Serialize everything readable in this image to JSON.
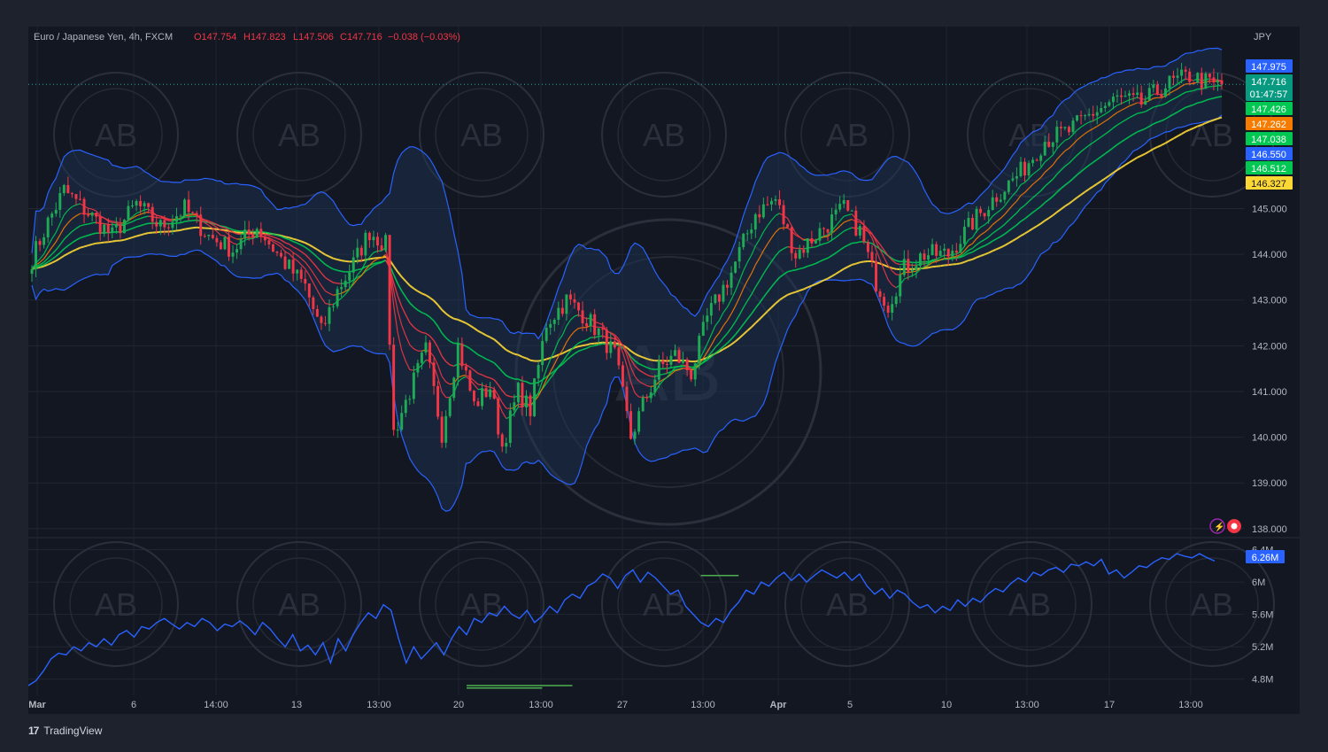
{
  "header": {
    "symbol": "Euro / Japanese Yen, 4h, FXCM",
    "open": "O147.754",
    "high": "H147.823",
    "low": "L147.506",
    "close": "C147.716",
    "change": "−0.038 (−0.03%)"
  },
  "currency": "JPY",
  "brand": "TradingView",
  "watermark_text": "AB",
  "price_labels": [
    {
      "text": "147.975",
      "color": "#2962ff",
      "value": 147.975
    },
    {
      "text": "147.716",
      "color": "#089981",
      "value": 147.716,
      "sub": "01:47:57"
    },
    {
      "text": "147.426",
      "color": "#00c853",
      "value": 147.426
    },
    {
      "text": "147.262",
      "color": "#f57c00",
      "value": 147.262
    },
    {
      "text": "147.038",
      "color": "#00c853",
      "value": 147.038
    },
    {
      "text": "146.550",
      "color": "#2962ff",
      "value": 146.55
    },
    {
      "text": "146.512",
      "color": "#00c853",
      "value": 146.512
    },
    {
      "text": "146.327",
      "color": "#fdd835",
      "value": 146.327
    }
  ],
  "volume_label": {
    "text": "6.26M",
    "color": "#2962ff",
    "value": 6.26
  },
  "colors": {
    "background": "#131722",
    "frame": "#1e222d",
    "up": "#26a69a",
    "up_candle": "#1faa56",
    "down_candle": "#f23645",
    "bollinger": "#2962ff",
    "band_fill": "#1c3557",
    "ema_fast": "#00c853",
    "ema_mid": "#f57c00",
    "ema_slow": "#fdd835",
    "text": "#b2b5be"
  },
  "chart_data": [
    {
      "type": "candlestick",
      "title": "Euro / Japanese Yen, 4h, FXCM",
      "ylabel": "JPY",
      "ylim": [
        137.9,
        148.4
      ],
      "y_ticks": [
        "145.000",
        "144.000",
        "143.000",
        "142.000",
        "141.000",
        "140.000",
        "139.000",
        "138.000"
      ],
      "y_tick_values": [
        145,
        144,
        143,
        142,
        141,
        140,
        139,
        138
      ],
      "x_ticks": [
        "Mar",
        "6",
        "14:00",
        "13",
        "13:00",
        "20",
        "13:00",
        "27",
        "13:00",
        "Apr",
        "5",
        "10",
        "13:00",
        "17",
        "13:00"
      ],
      "x_tick_bold": [
        "Mar",
        "Apr"
      ],
      "anchors": [
        [
          0,
          143.9
        ],
        [
          4,
          144.7
        ],
        [
          8,
          145.4
        ],
        [
          14,
          144.9
        ],
        [
          20,
          144.4
        ],
        [
          26,
          145.1
        ],
        [
          32,
          144.6
        ],
        [
          38,
          145.0
        ],
        [
          44,
          144.4
        ],
        [
          50,
          144.1
        ],
        [
          56,
          144.6
        ],
        [
          62,
          143.9
        ],
        [
          68,
          143.3
        ],
        [
          72,
          142.3
        ],
        [
          76,
          143.2
        ],
        [
          80,
          143.8
        ],
        [
          84,
          144.5
        ],
        [
          88,
          144.2
        ],
        [
          90,
          140.1
        ],
        [
          94,
          141.0
        ],
        [
          98,
          141.9
        ],
        [
          102,
          140.1
        ],
        [
          106,
          142.0
        ],
        [
          110,
          140.7
        ],
        [
          114,
          141.1
        ],
        [
          117,
          139.8
        ],
        [
          121,
          141.0
        ],
        [
          124,
          140.6
        ],
        [
          128,
          142.5
        ],
        [
          133,
          143.0
        ],
        [
          137,
          142.7
        ],
        [
          141,
          142.3
        ],
        [
          145,
          141.8
        ],
        [
          149,
          140.0
        ],
        [
          152,
          140.7
        ],
        [
          156,
          141.5
        ],
        [
          160,
          141.8
        ],
        [
          164,
          141.4
        ],
        [
          168,
          142.6
        ],
        [
          174,
          143.6
        ],
        [
          180,
          144.9
        ],
        [
          185,
          145.2
        ],
        [
          190,
          144.0
        ],
        [
          196,
          144.5
        ],
        [
          202,
          145.0
        ],
        [
          206,
          144.5
        ],
        [
          210,
          143.4
        ],
        [
          213,
          142.9
        ],
        [
          217,
          143.7
        ],
        [
          222,
          144.0
        ],
        [
          228,
          144.0
        ],
        [
          234,
          144.7
        ],
        [
          240,
          145.3
        ],
        [
          246,
          145.8
        ],
        [
          252,
          146.5
        ],
        [
          258,
          146.7
        ],
        [
          264,
          147.1
        ],
        [
          270,
          147.4
        ],
        [
          276,
          147.3
        ],
        [
          282,
          147.7
        ],
        [
          288,
          147.9
        ],
        [
          294,
          147.7
        ],
        [
          296,
          147.72
        ]
      ],
      "n_candles": 297,
      "series": [
        {
          "name": "BB upper",
          "kind": "band_upper"
        },
        {
          "name": "BB lower",
          "kind": "band_lower"
        },
        {
          "name": "EMA fast",
          "kind": "ema",
          "period": 8
        },
        {
          "name": "EMA mid",
          "kind": "ema",
          "period": 13
        },
        {
          "name": "EMA 21",
          "kind": "ema",
          "period": 21
        },
        {
          "name": "EMA 34",
          "kind": "ema",
          "period": 34
        },
        {
          "name": "EMA 55",
          "kind": "ema",
          "period": 55
        }
      ]
    },
    {
      "type": "line",
      "title": "",
      "ylim": [
        4.6,
        6.45
      ],
      "y_ticks": [
        "6.4M",
        "6M",
        "5.6M",
        "5.2M",
        "4.8M"
      ],
      "y_tick_values": [
        6.4,
        6.0,
        5.6,
        5.2,
        4.8
      ],
      "series": [
        {
          "name": "",
          "values": [
            4.72,
            4.78,
            4.9,
            5.05,
            5.12,
            5.1,
            5.2,
            5.15,
            5.25,
            5.2,
            5.3,
            5.22,
            5.35,
            5.4,
            5.32,
            5.45,
            5.42,
            5.5,
            5.55,
            5.48,
            5.42,
            5.5,
            5.45,
            5.55,
            5.5,
            5.4,
            5.48,
            5.45,
            5.52,
            5.45,
            5.35,
            5.5,
            5.42,
            5.3,
            5.2,
            5.35,
            5.15,
            5.22,
            5.1,
            5.25,
            5.0,
            5.3,
            5.15,
            5.35,
            5.5,
            5.62,
            5.55,
            5.72,
            5.65,
            5.3,
            5.0,
            5.2,
            5.05,
            5.15,
            5.25,
            5.1,
            5.3,
            5.45,
            5.35,
            5.55,
            5.5,
            5.62,
            5.58,
            5.7,
            5.6,
            5.55,
            5.65,
            5.5,
            5.58,
            5.7,
            5.62,
            5.78,
            5.85,
            5.8,
            5.95,
            6.0,
            6.1,
            6.05,
            5.92,
            6.08,
            6.15,
            6.0,
            6.12,
            6.05,
            5.95,
            5.85,
            5.9,
            5.7,
            5.6,
            5.5,
            5.45,
            5.55,
            5.5,
            5.65,
            5.75,
            5.9,
            5.85,
            6.0,
            5.95,
            6.05,
            6.12,
            6.02,
            6.1,
            6.0,
            6.08,
            6.15,
            6.1,
            6.05,
            6.12,
            6.02,
            6.1,
            5.95,
            5.85,
            5.92,
            5.8,
            5.9,
            5.85,
            5.75,
            5.68,
            5.72,
            5.62,
            5.7,
            5.65,
            5.78,
            5.7,
            5.8,
            5.75,
            5.85,
            5.92,
            5.88,
            5.98,
            6.05,
            6.0,
            6.12,
            6.08,
            6.15,
            6.18,
            6.12,
            6.22,
            6.2,
            6.25,
            6.2,
            6.28,
            6.1,
            6.15,
            6.05,
            6.12,
            6.2,
            6.18,
            6.25,
            6.3,
            6.28,
            6.35,
            6.32,
            6.3,
            6.35,
            6.3,
            6.26
          ]
        }
      ],
      "markers": [
        {
          "x_index": 58,
          "x_index_end": 72,
          "y": 4.72
        },
        {
          "x_index": 58,
          "x_index_end": 68,
          "y": 4.69
        },
        {
          "x_index": 89,
          "x_index_end": 94,
          "y": 6.08
        }
      ]
    }
  ]
}
